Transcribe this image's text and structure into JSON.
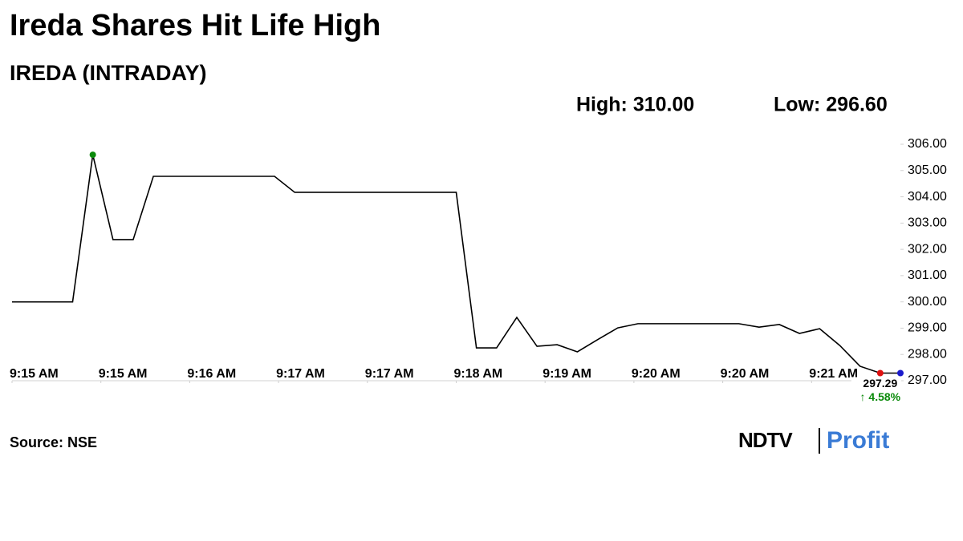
{
  "chart_data": {
    "type": "line",
    "title": "Ireda Shares Hit Life High",
    "subtitle": "IREDA (INTRADAY)",
    "high_text": "High: 310.00",
    "low_text": "Low: 296.60",
    "source": "Source: NSE",
    "logo": [
      "NDTV",
      "Profit"
    ],
    "x": [
      0,
      3,
      4,
      5,
      6,
      7,
      13,
      14,
      22,
      23,
      24,
      25,
      26,
      27,
      28,
      29,
      30,
      31,
      36,
      37,
      38,
      39,
      40,
      41,
      42,
      43,
      44
    ],
    "series": [
      {
        "name": "IREDA",
        "color": "#000000",
        "values": [
          300.0,
          300.0,
          305.6,
          302.37,
          302.37,
          304.78,
          304.78,
          304.17,
          304.17,
          298.25,
          298.25,
          299.41,
          298.31,
          298.37,
          298.1,
          298.56,
          299.01,
          299.17,
          299.17,
          299.04,
          299.14,
          298.8,
          298.98,
          298.34,
          297.55,
          297.29,
          297.29
        ]
      }
    ],
    "marker_colors": {
      "high": "#0a8a0a",
      "previous": "#e01010",
      "last": "#1a1acc"
    },
    "annotation": {
      "price": 297.29,
      "change": "↑ 4.58%",
      "change_color": "#0a8a0a"
    },
    "xlim": [
      0,
      44
    ],
    "xticks": [
      {
        "value": 0,
        "label": "9:15 AM"
      },
      {
        "value": 4.4,
        "label": "9:15 AM"
      },
      {
        "value": 8.8,
        "label": "9:16 AM"
      },
      {
        "value": 13.2,
        "label": "9:17 AM"
      },
      {
        "value": 17.6,
        "label": "9:17 AM"
      },
      {
        "value": 22,
        "label": "9:18 AM"
      },
      {
        "value": 26.4,
        "label": "9:19 AM"
      },
      {
        "value": 30.8,
        "label": "9:20 AM"
      },
      {
        "value": 35.2,
        "label": "9:20 AM"
      },
      {
        "value": 39.6,
        "label": "9:21 AM"
      }
    ],
    "ylim": [
      297,
      306
    ],
    "yticks": [
      {
        "value": 297,
        "label": "297.00"
      },
      {
        "value": 298,
        "label": "298.00"
      },
      {
        "value": 299,
        "label": "299.00"
      },
      {
        "value": 300,
        "label": "300.00"
      },
      {
        "value": 301,
        "label": "301.00"
      },
      {
        "value": 302,
        "label": "302.00"
      },
      {
        "value": 303,
        "label": "303.00"
      },
      {
        "value": 304,
        "label": "304.00"
      },
      {
        "value": 305,
        "label": "305.00"
      },
      {
        "value": 306,
        "label": "306.00"
      }
    ]
  }
}
